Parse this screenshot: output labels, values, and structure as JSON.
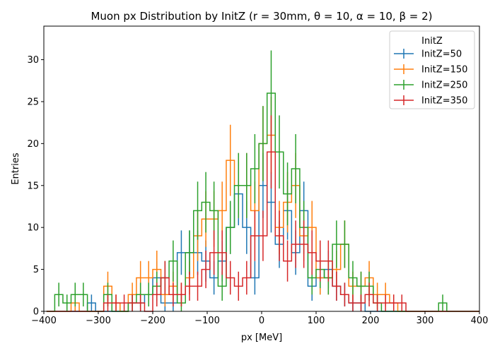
{
  "chart_data": {
    "type": "histogram",
    "title": "Muon px Distribution by InitZ (r = 30mm, θ = 10, α = 10, β = 2)",
    "xlabel": "px [MeV]",
    "ylabel": "Entries",
    "xlim": [
      -400,
      400
    ],
    "ylim": [
      0,
      34
    ],
    "xticks": [
      -400,
      -300,
      -200,
      -100,
      0,
      100,
      200,
      300,
      400
    ],
    "yticks": [
      0,
      5,
      10,
      15,
      20,
      25,
      30
    ],
    "grid": false,
    "legend": {
      "title": "InitZ",
      "placement": "top-right"
    },
    "bin_edges": [
      -395,
      -380,
      -365,
      -350,
      -335,
      -320,
      -305,
      -290,
      -275,
      -260,
      -245,
      -230,
      -215,
      -200,
      -185,
      -170,
      -155,
      -140,
      -125,
      -110,
      -95,
      -80,
      -65,
      -50,
      -35,
      -20,
      -5,
      10,
      25,
      40,
      55,
      70,
      85,
      100,
      115,
      130,
      145,
      160,
      175,
      190,
      205,
      220,
      235,
      250,
      265,
      280,
      295,
      310,
      325,
      340,
      355,
      370,
      385,
      400
    ],
    "series": [
      {
        "name": "InitZ=50",
        "color": "#1f77b4",
        "values": [
          0,
          0,
          0,
          0,
          0,
          1,
          0,
          0,
          0,
          0,
          1,
          1,
          2,
          4,
          1,
          1,
          7,
          7,
          7,
          6,
          4,
          6,
          10,
          14,
          10,
          4,
          15,
          13,
          8,
          12,
          7,
          12,
          3,
          4,
          5,
          3,
          2,
          1,
          1,
          0,
          0,
          0,
          0,
          0,
          0,
          0,
          0,
          0,
          0,
          0,
          0,
          0,
          0
        ]
      },
      {
        "name": "InitZ=150",
        "color": "#ff7f0e",
        "values": [
          0,
          0,
          0,
          1,
          0,
          0,
          0,
          3,
          1,
          0,
          2,
          4,
          4,
          5,
          2,
          3,
          2,
          4,
          9,
          11,
          11,
          12,
          18,
          15,
          15,
          12,
          20,
          21,
          10,
          13,
          15,
          9,
          10,
          4,
          4,
          5,
          8,
          3,
          3,
          4,
          2,
          2,
          1,
          0,
          0,
          0,
          0,
          0,
          0,
          0,
          0,
          0,
          0
        ]
      },
      {
        "name": "InitZ=250",
        "color": "#2ca02c",
        "values": [
          0,
          2,
          1,
          2,
          2,
          0,
          0,
          2,
          0,
          0,
          1,
          2,
          2,
          3,
          4,
          6,
          1,
          7,
          12,
          13,
          12,
          3,
          10,
          15,
          15,
          17,
          20,
          26,
          19,
          14,
          17,
          10,
          4,
          5,
          4,
          8,
          8,
          4,
          3,
          3,
          1,
          0,
          0,
          0,
          0,
          0,
          0,
          0,
          1,
          0,
          0,
          0,
          0
        ]
      },
      {
        "name": "InitZ=350",
        "color": "#d62728",
        "values": [
          0,
          0,
          0,
          0,
          0,
          0,
          0,
          1,
          1,
          1,
          1,
          1,
          0,
          2,
          4,
          2,
          2,
          3,
          3,
          5,
          7,
          7,
          4,
          3,
          4,
          9,
          9,
          19,
          9,
          6,
          8,
          8,
          7,
          6,
          6,
          3,
          2,
          1,
          1,
          2,
          1,
          1,
          1,
          1,
          0,
          0,
          0,
          0,
          0,
          0,
          0,
          0,
          0
        ]
      }
    ]
  }
}
